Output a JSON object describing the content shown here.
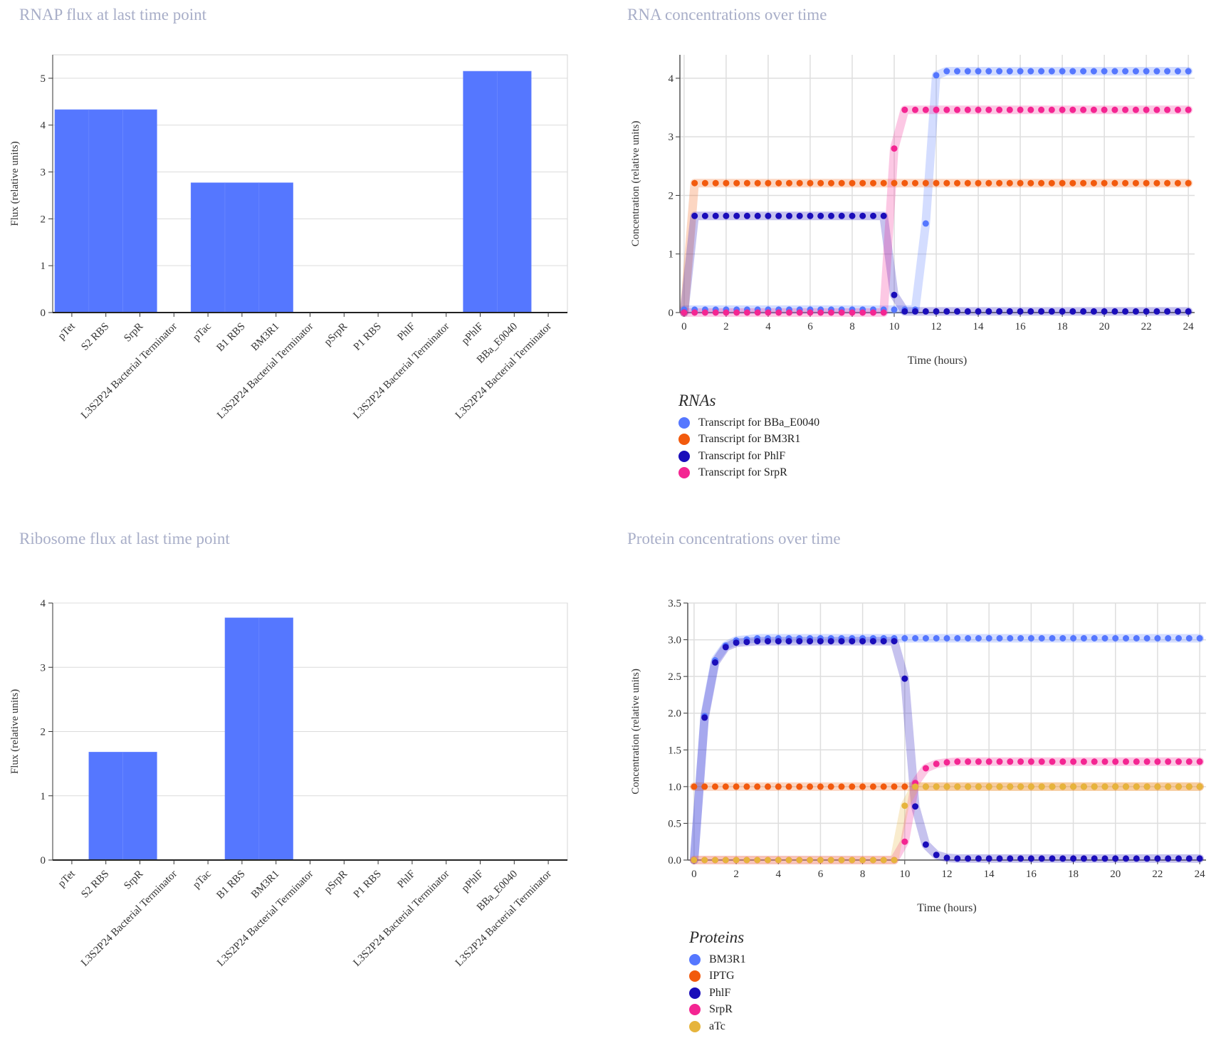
{
  "panels": {
    "rnap_title": "RNAP flux at last time point",
    "rna_title": "RNA concentrations over time",
    "ribo_title": "Ribosome flux at last time point",
    "protein_title": "Protein concentrations over time"
  },
  "legends": {
    "rna": {
      "title": "RNAs",
      "items": [
        {
          "label": "Transcript for BBa_E0040",
          "color": "#5577ff"
        },
        {
          "label": "Transcript for BM3R1",
          "color": "#f25a0d"
        },
        {
          "label": "Transcript for PhlF",
          "color": "#1a0dba"
        },
        {
          "label": "Transcript for SrpR",
          "color": "#f42592"
        }
      ]
    },
    "protein": {
      "title": "Proteins",
      "items": [
        {
          "label": "BM3R1",
          "color": "#5577ff"
        },
        {
          "label": "IPTG",
          "color": "#f25a0d"
        },
        {
          "label": "PhlF",
          "color": "#1a0dba"
        },
        {
          "label": "SrpR",
          "color": "#f42592"
        },
        {
          "label": "aTc",
          "color": "#e6b43c"
        }
      ]
    }
  },
  "chart_data": [
    {
      "id": "rnap",
      "type": "bar",
      "title": "RNAP flux at last time point",
      "xlabel": "",
      "ylabel": "Flux (relative units)",
      "ylim": [
        0,
        5.5
      ],
      "yticks": [
        0,
        1,
        2,
        3,
        4,
        5
      ],
      "grid": true,
      "bar_color": "#5577ff",
      "categories": [
        "pTet",
        "S2 RBS",
        "SrpR",
        "L3S2P24 Bacterial Terminator",
        "pTac",
        "B1 RBS",
        "BM3R1",
        "L3S2P24 Bacterial Terminator",
        "pSrpR",
        "P1 RBS",
        "PhlF",
        "L3S2P24 Bacterial Terminator",
        "pPhlF",
        "BBa_E0040",
        "L3S2P24 Bacterial Terminator"
      ],
      "values": [
        4.33,
        4.33,
        4.33,
        0,
        2.77,
        2.77,
        2.77,
        0,
        0,
        0,
        0,
        0,
        5.15,
        5.15,
        0
      ]
    },
    {
      "id": "ribo",
      "type": "bar",
      "title": "Ribosome flux at last time point",
      "xlabel": "",
      "ylabel": "Flux (relative units)",
      "ylim": [
        0,
        4
      ],
      "yticks": [
        0,
        1,
        2,
        3,
        4
      ],
      "grid": true,
      "bar_color": "#5577ff",
      "categories": [
        "pTet",
        "S2 RBS",
        "SrpR",
        "L3S2P24 Bacterial Terminator",
        "pTac",
        "B1 RBS",
        "BM3R1",
        "L3S2P24 Bacterial Terminator",
        "pSrpR",
        "P1 RBS",
        "PhlF",
        "L3S2P24 Bacterial Terminator",
        "pPhlF",
        "BBa_E0040",
        "L3S2P24 Bacterial Terminator"
      ],
      "values": [
        0,
        1.68,
        1.68,
        0,
        0,
        3.77,
        3.77,
        0,
        0,
        0,
        0,
        0,
        0,
        0,
        0
      ]
    },
    {
      "id": "rna",
      "type": "scatter",
      "title": "RNA concentrations over time",
      "xlabel": "Time (hours)",
      "ylabel": "Concentration (relative units)",
      "xlim": [
        -0.2,
        24.3
      ],
      "ylim": [
        0,
        4.4
      ],
      "xticks": [
        0,
        2,
        4,
        6,
        8,
        10,
        12,
        14,
        16,
        18,
        20,
        22,
        24
      ],
      "yticks": [
        0,
        1,
        2,
        3,
        4
      ],
      "ytick_decimals": 0,
      "grid": true,
      "legend": "bottom-left",
      "time_step": 0.5,
      "series": [
        {
          "name": "Transcript for BBa_E0040",
          "color": "#5577ff",
          "profile": [
            [
              0,
              0.05
            ],
            [
              10,
              0.05
            ],
            [
              11,
              0.05
            ],
            [
              11.5,
              1.52
            ],
            [
              12,
              4.05
            ],
            [
              12.5,
              4.12
            ],
            [
              24,
              4.12
            ]
          ]
        },
        {
          "name": "Transcript for BM3R1",
          "color": "#f25a0d",
          "profile": [
            [
              0,
              0
            ],
            [
              0.5,
              2.21
            ],
            [
              24,
              2.21
            ]
          ]
        },
        {
          "name": "Transcript for PhlF",
          "color": "#1a0dba",
          "profile": [
            [
              0,
              0
            ],
            [
              0.5,
              1.65
            ],
            [
              9.5,
              1.65
            ],
            [
              10,
              0.3
            ],
            [
              10.5,
              0.02
            ],
            [
              24,
              0.02
            ]
          ]
        },
        {
          "name": "Transcript for SrpR",
          "color": "#f42592",
          "profile": [
            [
              0,
              0
            ],
            [
              9.5,
              0
            ],
            [
              10,
              2.8
            ],
            [
              10.5,
              3.46
            ],
            [
              24,
              3.46
            ]
          ]
        }
      ]
    },
    {
      "id": "protein",
      "type": "scatter",
      "title": "Protein concentrations over time",
      "xlabel": "Time (hours)",
      "ylabel": "Concentration (relative units)",
      "xlim": [
        -0.3,
        24.3
      ],
      "ylim": [
        0,
        3.5
      ],
      "xticks": [
        0,
        2,
        4,
        6,
        8,
        10,
        12,
        14,
        16,
        18,
        20,
        22,
        24
      ],
      "yticks": [
        0,
        0.5,
        1.0,
        1.5,
        2.0,
        2.5,
        3.0,
        3.5
      ],
      "ytick_decimals": 1,
      "grid": true,
      "legend": "bottom-left",
      "time_step": 0.5,
      "series": [
        {
          "name": "BM3R1",
          "color": "#5577ff",
          "profile": [
            [
              0,
              0
            ],
            [
              0.5,
              1.96
            ],
            [
              1,
              2.72
            ],
            [
              1.5,
              2.92
            ],
            [
              2,
              2.99
            ],
            [
              3,
              3.02
            ],
            [
              24,
              3.02
            ]
          ]
        },
        {
          "name": "IPTG",
          "color": "#f25a0d",
          "profile": [
            [
              0,
              1.0
            ],
            [
              24,
              1.0
            ]
          ]
        },
        {
          "name": "PhlF",
          "color": "#1a0dba",
          "profile": [
            [
              0,
              0
            ],
            [
              0.5,
              1.94
            ],
            [
              1,
              2.69
            ],
            [
              1.5,
              2.9
            ],
            [
              2,
              2.96
            ],
            [
              3,
              2.98
            ],
            [
              9.5,
              2.98
            ],
            [
              10,
              2.47
            ],
            [
              10.5,
              0.73
            ],
            [
              11,
              0.21
            ],
            [
              11.5,
              0.07
            ],
            [
              12,
              0.03
            ],
            [
              12.5,
              0.02
            ],
            [
              24,
              0.02
            ]
          ]
        },
        {
          "name": "SrpR",
          "color": "#f42592",
          "profile": [
            [
              0,
              0
            ],
            [
              9.5,
              0
            ],
            [
              10,
              0.25
            ],
            [
              10.5,
              1.05
            ],
            [
              11,
              1.25
            ],
            [
              11.5,
              1.31
            ],
            [
              12,
              1.33
            ],
            [
              12.5,
              1.34
            ],
            [
              24,
              1.34
            ]
          ]
        },
        {
          "name": "aTc",
          "color": "#e6b43c",
          "profile": [
            [
              0,
              0
            ],
            [
              9.5,
              0
            ],
            [
              10,
              0.74
            ],
            [
              10.5,
              1.0
            ],
            [
              24,
              1.0
            ]
          ]
        }
      ]
    }
  ]
}
